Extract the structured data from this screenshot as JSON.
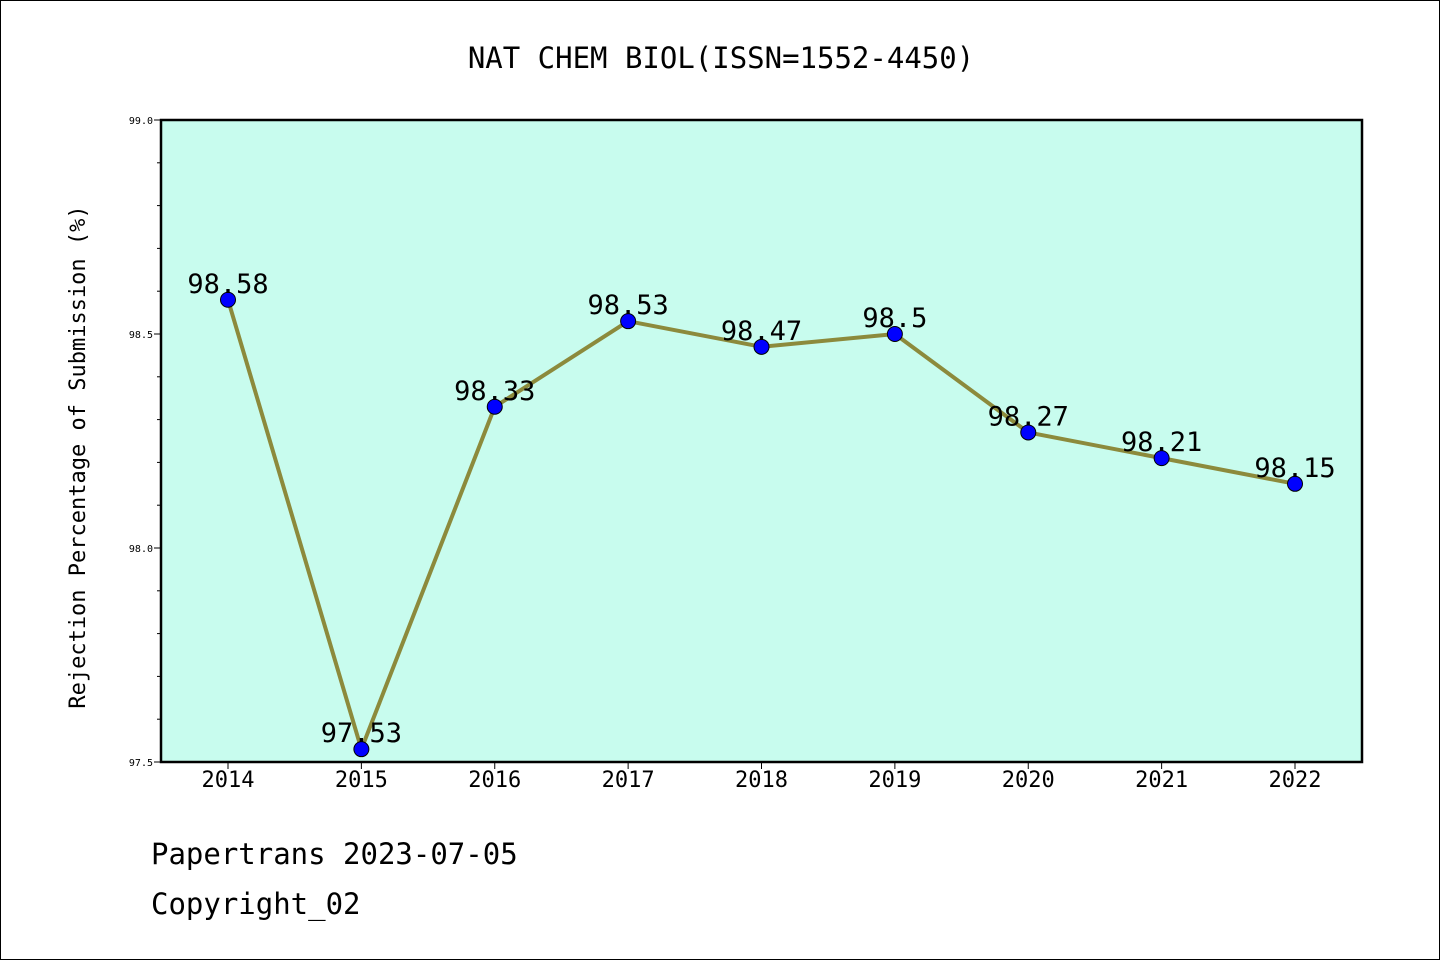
{
  "chart_data": {
    "type": "line",
    "title": "NAT CHEM BIOL(ISSN=1552-4450)",
    "xlabel": "",
    "ylabel": "Rejection Percentage of Submission (%)",
    "categories": [
      "2014",
      "2015",
      "2016",
      "2017",
      "2018",
      "2019",
      "2020",
      "2021",
      "2022"
    ],
    "series": [
      {
        "values": [
          98.58,
          97.53,
          98.33,
          98.53,
          98.47,
          98.5,
          98.27,
          98.21,
          98.15
        ]
      }
    ],
    "data_labels": [
      "98.58",
      "97.53",
      "98.33",
      "98.53",
      "98.47",
      "98.5",
      "98.27",
      "98.21",
      "98.15"
    ],
    "ylim": [
      97.5,
      99.0
    ],
    "y_ticks": [
      "97.5",
      "98.0",
      "98.5",
      "99.0"
    ],
    "grid": false,
    "colors": {
      "plot_background": "#c8fcee",
      "line": "#8c8a3c",
      "marker": "#0000ff"
    }
  },
  "footer": {
    "line1": "Papertrans 2023-07-05",
    "line2": "Copyright_02"
  }
}
